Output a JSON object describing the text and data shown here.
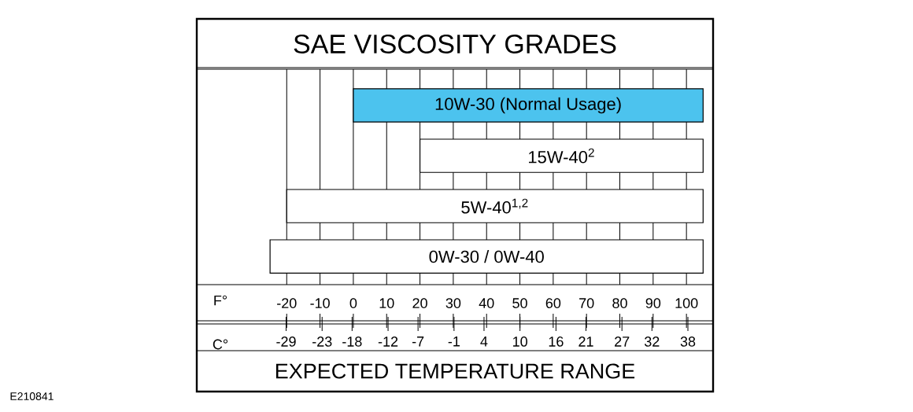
{
  "chart_data": {
    "type": "bar",
    "orientation": "horizontal",
    "title": "SAE VISCOSITY GRADES",
    "categories": [
      "10W-30 (Normal Usage)",
      "15W-40$^{2}$",
      "5W-40$^{1,2}$",
      "0W-30 / 0W-40"
    ],
    "base": [
      0,
      20,
      -20,
      -25
    ],
    "values": [
      105,
      85,
      125,
      130
    ],
    "colors": [
      "#4cc3ee",
      "#ffffff",
      "#ffffff",
      "#ffffff"
    ],
    "xlabel": "F°",
    "x2label": "C°",
    "xlim": [
      -47,
      108
    ],
    "xticks": [
      -20,
      -10,
      0,
      10,
      20,
      30,
      40,
      50,
      60,
      70,
      80,
      90,
      100
    ],
    "x2lim": [
      -43.9,
      42.2
    ],
    "x2ticks": [
      -29,
      -23,
      -18,
      -12,
      -7,
      -1,
      4,
      10,
      16,
      21,
      27,
      32,
      38
    ],
    "grid": "x",
    "annotations": [
      "EXPECTED TEMPERATURE RANGE",
      "E210841"
    ]
  }
}
